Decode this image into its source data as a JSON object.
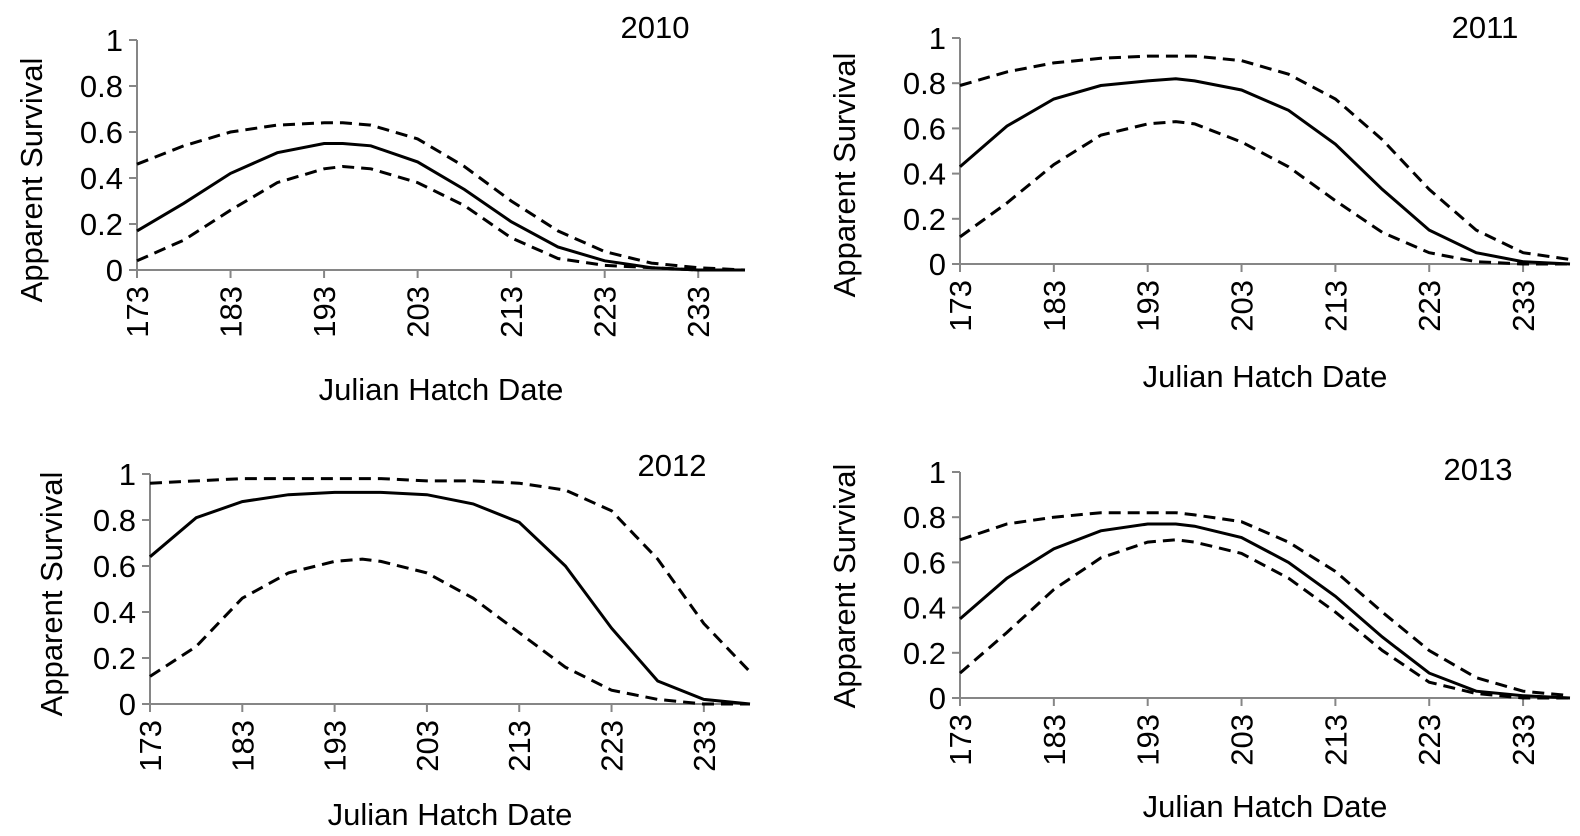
{
  "chart_data": [
    {
      "type": "line",
      "title": "2010",
      "xlabel": "Julian Hatch Date",
      "ylabel": "Apparent Survival",
      "xlim": [
        173,
        238
      ],
      "ylim": [
        0,
        1
      ],
      "xticks": [
        "173",
        "183",
        "193",
        "203",
        "213",
        "223",
        "233"
      ],
      "yticks": [
        "0",
        "0.2",
        "0.4",
        "0.6",
        "0.8",
        "1"
      ],
      "grid": false,
      "x": [
        173,
        178,
        183,
        188,
        193,
        195,
        198,
        203,
        208,
        213,
        218,
        223,
        228,
        233,
        238
      ],
      "series": [
        {
          "style": "dashed",
          "values": [
            0.46,
            0.54,
            0.6,
            0.63,
            0.64,
            0.64,
            0.63,
            0.57,
            0.45,
            0.3,
            0.17,
            0.08,
            0.03,
            0.01,
            0.0
          ]
        },
        {
          "style": "solid",
          "values": [
            0.17,
            0.29,
            0.42,
            0.51,
            0.55,
            0.55,
            0.54,
            0.47,
            0.35,
            0.21,
            0.1,
            0.04,
            0.01,
            0.0,
            0.0
          ]
        },
        {
          "style": "dashed",
          "values": [
            0.04,
            0.13,
            0.26,
            0.38,
            0.44,
            0.45,
            0.44,
            0.38,
            0.28,
            0.14,
            0.05,
            0.02,
            0.01,
            0.0,
            0.0
          ]
        }
      ]
    },
    {
      "type": "line",
      "title": "2011",
      "xlabel": "Julian Hatch Date",
      "ylabel": "Apparent Survival",
      "xlim": [
        173,
        238
      ],
      "ylim": [
        0,
        1
      ],
      "xticks": [
        "173",
        "183",
        "193",
        "203",
        "213",
        "223",
        "233"
      ],
      "yticks": [
        "0",
        "0.2",
        "0.4",
        "0.6",
        "0.8",
        "1"
      ],
      "grid": false,
      "x": [
        173,
        178,
        183,
        188,
        193,
        196,
        198,
        203,
        208,
        213,
        218,
        223,
        228,
        233,
        238
      ],
      "series": [
        {
          "style": "dashed",
          "values": [
            0.79,
            0.85,
            0.89,
            0.91,
            0.92,
            0.92,
            0.92,
            0.9,
            0.84,
            0.73,
            0.55,
            0.33,
            0.15,
            0.05,
            0.02
          ]
        },
        {
          "style": "solid",
          "values": [
            0.43,
            0.61,
            0.73,
            0.79,
            0.81,
            0.82,
            0.81,
            0.77,
            0.68,
            0.53,
            0.33,
            0.15,
            0.05,
            0.01,
            0.0
          ]
        },
        {
          "style": "dashed",
          "values": [
            0.12,
            0.27,
            0.44,
            0.57,
            0.62,
            0.63,
            0.62,
            0.54,
            0.43,
            0.28,
            0.14,
            0.05,
            0.01,
            0.0,
            0.0
          ]
        }
      ]
    },
    {
      "type": "line",
      "title": "2012",
      "xlabel": "Julian Hatch Date",
      "ylabel": "Apparent Survival",
      "xlim": [
        173,
        238
      ],
      "ylim": [
        0,
        1
      ],
      "xticks": [
        "173",
        "183",
        "193",
        "203",
        "213",
        "223",
        "233"
      ],
      "yticks": [
        "0",
        "0.2",
        "0.4",
        "0.6",
        "0.8",
        "1"
      ],
      "grid": false,
      "x": [
        173,
        178,
        183,
        188,
        193,
        196,
        198,
        203,
        208,
        213,
        218,
        223,
        228,
        233,
        238
      ],
      "series": [
        {
          "style": "dashed",
          "values": [
            0.96,
            0.97,
            0.98,
            0.98,
            0.98,
            0.98,
            0.98,
            0.97,
            0.97,
            0.96,
            0.93,
            0.84,
            0.63,
            0.35,
            0.14
          ]
        },
        {
          "style": "solid",
          "values": [
            0.64,
            0.81,
            0.88,
            0.91,
            0.92,
            0.92,
            0.92,
            0.91,
            0.87,
            0.79,
            0.6,
            0.33,
            0.1,
            0.02,
            0.0
          ]
        },
        {
          "style": "dashed",
          "values": [
            0.12,
            0.25,
            0.46,
            0.57,
            0.62,
            0.63,
            0.62,
            0.57,
            0.46,
            0.31,
            0.16,
            0.06,
            0.02,
            0.0,
            0.0
          ]
        }
      ]
    },
    {
      "type": "line",
      "title": "2013",
      "xlabel": "Julian Hatch Date",
      "ylabel": "Apparent Survival",
      "xlim": [
        173,
        238
      ],
      "ylim": [
        0,
        1
      ],
      "xticks": [
        "173",
        "183",
        "193",
        "203",
        "213",
        "223",
        "233"
      ],
      "yticks": [
        "0",
        "0.2",
        "0.4",
        "0.6",
        "0.8",
        "1"
      ],
      "grid": false,
      "x": [
        173,
        178,
        183,
        188,
        193,
        196,
        198,
        203,
        208,
        213,
        218,
        223,
        228,
        233,
        238
      ],
      "series": [
        {
          "style": "dashed",
          "values": [
            0.7,
            0.77,
            0.8,
            0.82,
            0.82,
            0.82,
            0.81,
            0.78,
            0.69,
            0.56,
            0.38,
            0.21,
            0.09,
            0.03,
            0.01
          ]
        },
        {
          "style": "solid",
          "values": [
            0.35,
            0.53,
            0.66,
            0.74,
            0.77,
            0.77,
            0.76,
            0.71,
            0.6,
            0.45,
            0.27,
            0.11,
            0.03,
            0.01,
            0.0
          ]
        },
        {
          "style": "dashed",
          "values": [
            0.11,
            0.29,
            0.48,
            0.62,
            0.69,
            0.7,
            0.69,
            0.64,
            0.53,
            0.38,
            0.21,
            0.07,
            0.02,
            0.0,
            0.0
          ]
        }
      ]
    }
  ]
}
